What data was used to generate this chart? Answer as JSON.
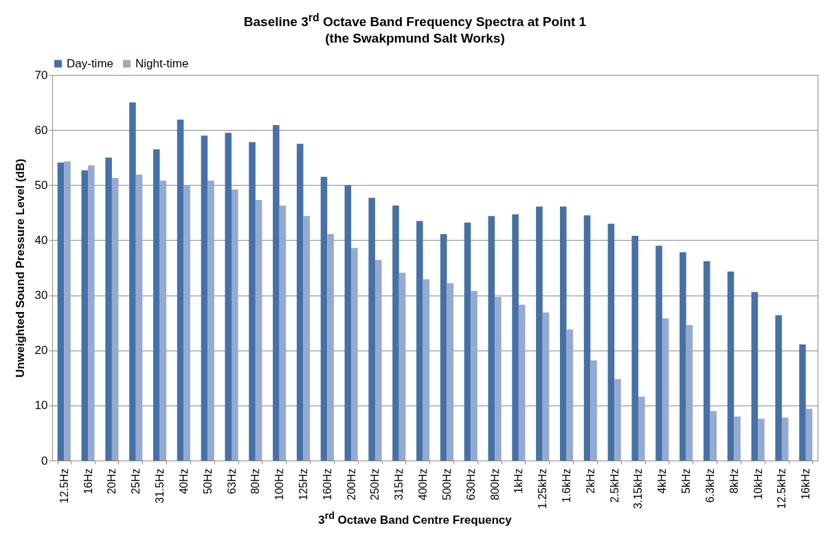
{
  "chart_data": {
    "type": "bar",
    "title": "Baseline 3$^{rd}$ Octave Band Frequency Spectra at Point 1\n(the Swakpmund Salt Works)",
    "xlabel": "3$^{rd}$ Octave Band Centre Frequency",
    "ylabel": "Unweighted Sound Pressure Level (dB)",
    "categories": [
      "12.5Hz",
      "16Hz",
      "20Hz",
      "25Hz",
      "31.5Hz",
      "40Hz",
      "50Hz",
      "63Hz",
      "80Hz",
      "100Hz",
      "125Hz",
      "160Hz",
      "200Hz",
      "250Hz",
      "315Hz",
      "400Hz",
      "500Hz",
      "630Hz",
      "800Hz",
      "1kHz",
      "1.25kHz",
      "1.6kHz",
      "2kHz",
      "2.5kHz",
      "3.15kHz",
      "4kHz",
      "5kHz",
      "6.3kHz",
      "8kHz",
      "10kHz",
      "12.5kHz",
      "16kHz"
    ],
    "series": [
      {
        "name": "Day-time",
        "color": "#4671a7",
        "values": [
          54.1,
          52.7,
          55,
          65,
          56.5,
          61.9,
          59,
          59.5,
          57.8,
          60.9,
          57.5,
          51.5,
          50,
          47.7,
          46.3,
          43.5,
          41.1,
          43.2,
          44.4,
          44.7,
          46.1,
          46.1,
          44.5,
          43,
          40.8,
          39,
          37.8,
          36.2,
          34.3,
          30.6,
          26.4,
          21.1
        ]
      },
      {
        "name": "Night-time",
        "color": "#95aad2",
        "values": [
          54.3,
          53.6,
          51.3,
          51.9,
          50.8,
          50,
          50.8,
          49.2,
          47.3,
          46.3,
          44.4,
          41.1,
          38.6,
          36.4,
          34.1,
          32.9,
          32.2,
          30.8,
          29.7,
          28.3,
          26.9,
          23.8,
          18.2,
          14.8,
          11.6,
          25.8,
          24.6,
          9,
          8,
          7.6,
          7.8,
          9.4
        ]
      }
    ],
    "ylim": [
      0,
      70
    ],
    "yticks": [
      0,
      10,
      20,
      30,
      40,
      50,
      60,
      70
    ],
    "grid": "y",
    "legend": "top"
  }
}
